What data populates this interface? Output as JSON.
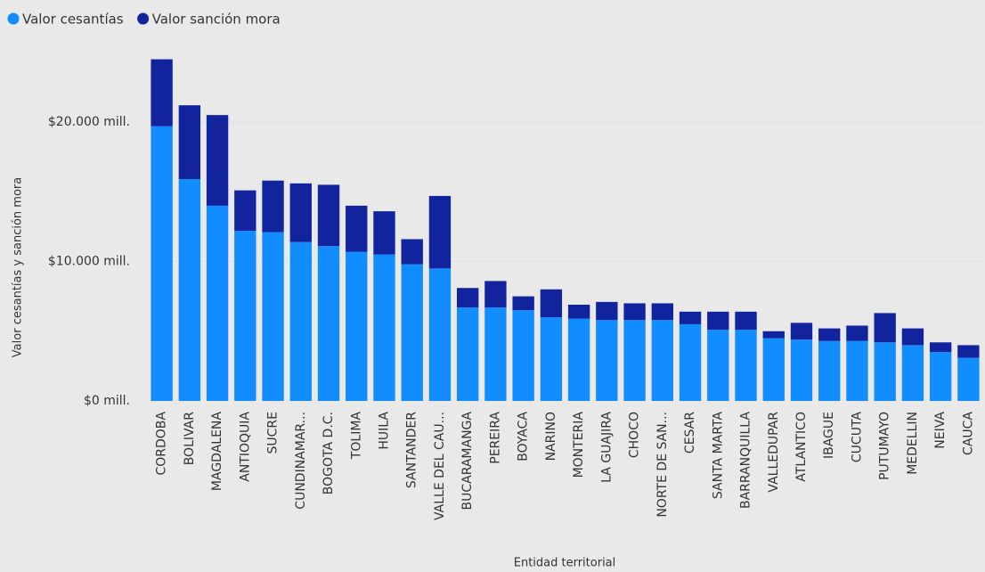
{
  "chart_data": {
    "type": "stacked_bar",
    "x_label": "Entidad territorial",
    "y_label": "Valor cesantías y sanción mora",
    "categories": [
      "CORDOBA",
      "BOLIVAR",
      "MAGDALENA",
      "ANTIOQUIA",
      "SUCRE",
      "CUNDINAMAR...",
      "BOGOTA D.C.",
      "TOLIMA",
      "HUILA",
      "SANTANDER",
      "VALLE DEL CAU...",
      "BUCARAMANGA",
      "PEREIRA",
      "BOYACA",
      "NARINO",
      "MONTERIA",
      "LA GUAJIRA",
      "CHOCO",
      "NORTE DE SAN...",
      "CESAR",
      "SANTA MARTA",
      "BARRANQUILLA",
      "VALLEDUPAR",
      "ATLANTICO",
      "IBAGUE",
      "CUCUTA",
      "PUTUMAYO",
      "MEDELLIN",
      "NEIVA",
      "CAUCA"
    ],
    "series": [
      {
        "name": "Valor cesantías",
        "color": "#118dff",
        "values": [
          19700,
          15900,
          14000,
          12200,
          12100,
          11400,
          11100,
          10700,
          10500,
          9800,
          9500,
          6700,
          6700,
          6500,
          6000,
          5900,
          5800,
          5800,
          5800,
          5500,
          5100,
          5100,
          4500,
          4400,
          4300,
          4300,
          4200,
          4000,
          3500,
          3100
        ]
      },
      {
        "name": "Valor sanción mora",
        "color": "#12239e",
        "values": [
          4800,
          5300,
          6500,
          2900,
          3700,
          4200,
          4400,
          3300,
          3100,
          1800,
          5200,
          1400,
          1900,
          1000,
          2000,
          1000,
          1300,
          1200,
          1200,
          900,
          1300,
          1300,
          500,
          1200,
          900,
          1100,
          2100,
          1200,
          700,
          900
        ]
      }
    ],
    "ylim": [
      0,
      25000
    ],
    "yticks": [
      {
        "value": 0,
        "label": "$0 mill."
      },
      {
        "value": 10000,
        "label": "$10.000 mill."
      },
      {
        "value": 20000,
        "label": "$20.000 mill."
      }
    ],
    "grid": true
  }
}
